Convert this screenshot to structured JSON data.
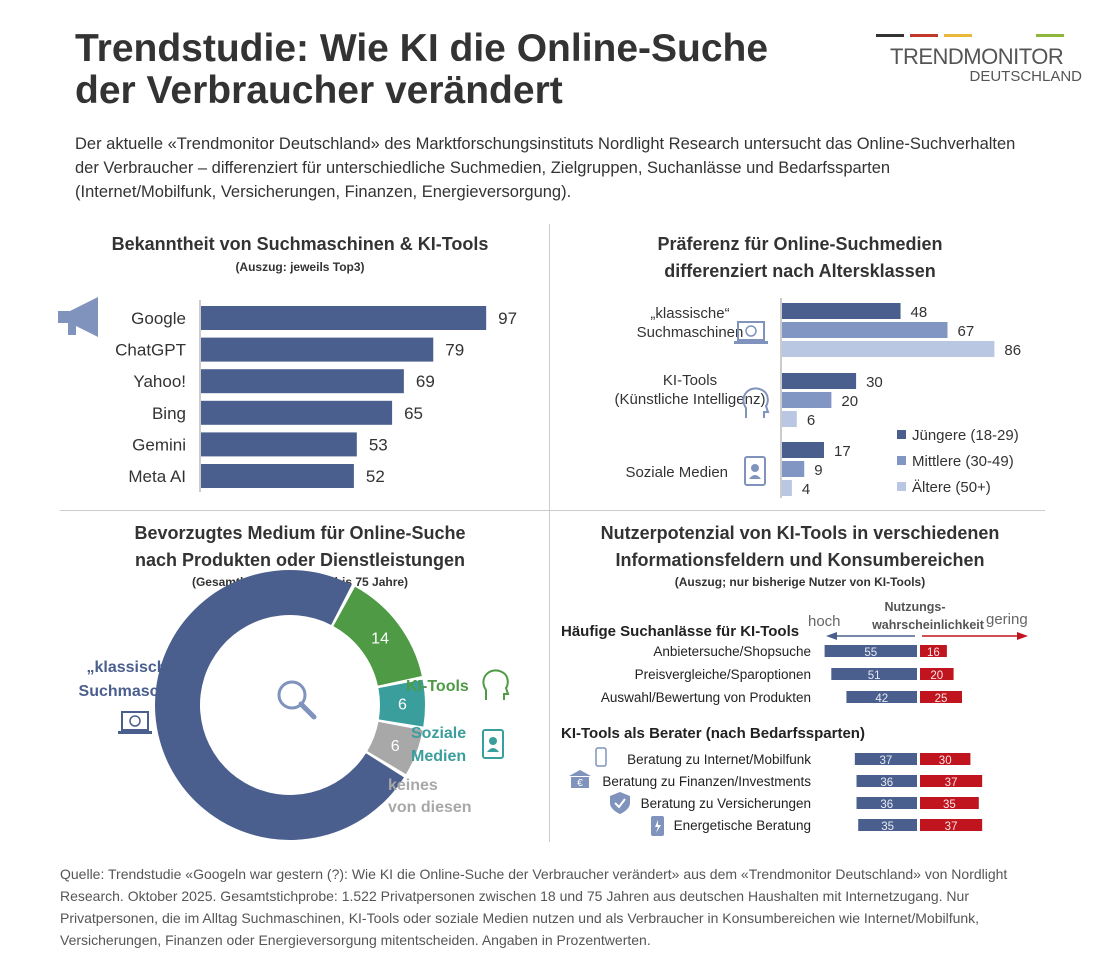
{
  "header": {
    "title_line1": "Trendstudie: Wie KI die Online-Suche",
    "title_line2": "der Verbraucher verändert",
    "logo": {
      "line1": "TRENDMONITOR",
      "line2": "DEUTSCHLAND",
      "stripe_colors": [
        "#333333",
        "#c0392b",
        "#e8b83a",
        "#8cb63c"
      ]
    },
    "intro": "Der aktuelle «Trendmonitor Deutschland» des Marktforschungsinstituts Nordlight Research untersucht das Online-Suchverhalten der Verbraucher – differenziert für unterschiedliche Suchmedien, Zielgruppen, Suchanlässe und Bedarfssparten (Internet/Mobilfunk, Versicherungen, Finanzen, Energieversorgung)."
  },
  "colors": {
    "dark": "#4b5f8e",
    "mid": "#8196c2",
    "light": "#b9c7e2",
    "green": "#4e9a45",
    "teal": "#3a9e9c",
    "gray": "#a8a8a8",
    "red": "#c0151f"
  },
  "chart_data": [
    {
      "type": "bar",
      "orientation": "horizontal",
      "title": "Bekanntheit von Suchmaschinen & KI-Tools",
      "subtitle": "(Auszug: jeweils Top3)",
      "categories": [
        "Google",
        "ChatGPT",
        "Yahoo!",
        "Bing",
        "Gemini",
        "Meta AI"
      ],
      "values": [
        97,
        79,
        69,
        65,
        53,
        52
      ],
      "icon": "megaphone-icon"
    },
    {
      "type": "bar",
      "orientation": "horizontal",
      "title": "Präferenz für Online-Suchmedien",
      "title2": "differenziert nach Altersklassen",
      "categories": [
        {
          "label1": "„klassische“",
          "label2": "Suchmaschinen",
          "icon": "laptop-globe-icon"
        },
        {
          "label1": "KI-Tools",
          "label2": "(Künstliche Intelligenz)",
          "icon": "ai-head-icon"
        },
        {
          "label1": "Soziale Medien",
          "label2": "",
          "icon": "social-profile-icon"
        }
      ],
      "series": [
        {
          "name": "Jüngere (18-29)",
          "values": [
            48,
            30,
            17
          ]
        },
        {
          "name": "Mittlere (30-49)",
          "values": [
            67,
            20,
            9
          ]
        },
        {
          "name": "Ältere (50+)",
          "values": [
            86,
            6,
            4
          ]
        }
      ],
      "legend": "bottom-right"
    },
    {
      "type": "pie",
      "donut": true,
      "title": "Bevorzugtes Medium für Online-Suche",
      "title2": "nach Produkten oder Dienstleistungen",
      "subtitle": "(Gesamtbevölkerung, 18 bis 75 Jahre)",
      "slices": [
        {
          "label1": "„klassische“",
          "label2": "Suchmaschine",
          "value": 74
        },
        {
          "label1": "KI-Tools",
          "label2": "",
          "value": 14
        },
        {
          "label1": "Soziale",
          "label2": "Medien",
          "value": 6
        },
        {
          "label1": "keines",
          "label2": "von diesen",
          "value": 6
        }
      ]
    },
    {
      "type": "bar",
      "orientation": "diverging",
      "title": "Nutzerpotenzial von KI-Tools in verschiedenen",
      "title2": "Informationsfeldern und Konsumbereichen",
      "subtitle": "(Auszug; nur bisherige Nutzer von KI-Tools)",
      "axis": {
        "label1": "Nutzungs-",
        "label2": "wahrscheinlichkeit",
        "left": "hoch",
        "right": "gering"
      },
      "groups": [
        {
          "title": "Häufige Suchanlässe für KI-Tools",
          "rows": [
            {
              "label": "Anbietersuche/Shopsuche",
              "hoch": 55,
              "gering": 16
            },
            {
              "label": "Preisvergleiche/Sparoptionen",
              "hoch": 51,
              "gering": 20
            },
            {
              "label": "Auswahl/Bewertung von Produkten",
              "hoch": 42,
              "gering": 25
            }
          ]
        },
        {
          "title": "KI-Tools als Berater (nach Bedarfssparten)",
          "rows": [
            {
              "label": "Beratung zu Internet/Mobilfunk",
              "hoch": 37,
              "gering": 30,
              "icon": "smartphone-icon"
            },
            {
              "label": "Beratung zu Finanzen/Investments",
              "hoch": 36,
              "gering": 37,
              "icon": "bank-euro-icon"
            },
            {
              "label": "Beratung zu Versicherungen",
              "hoch": 36,
              "gering": 35,
              "icon": "shield-check-icon"
            },
            {
              "label": "Energetische Beratung",
              "hoch": 35,
              "gering": 37,
              "icon": "battery-icon"
            }
          ]
        }
      ]
    }
  ],
  "footer": "Quelle: Trendstudie «Googeln war gestern (?): Wie KI die Online-Suche der Verbraucher verändert» aus dem «Trendmonitor Deutschland» von Nordlight Research. Oktober 2025. Gesamtstichprobe: 1.522 Privatpersonen zwischen 18 und 75 Jahren aus deutschen Haushalten mit Internetzugang. Nur Privatpersonen, die im Alltag Suchmaschinen, KI-Tools oder soziale Medien nutzen und als Verbraucher in Konsumbereichen wie Internet/Mobilfunk, Versicherungen, Finanzen oder Energieversorgung mitentscheiden. Angaben in Prozentwerten."
}
